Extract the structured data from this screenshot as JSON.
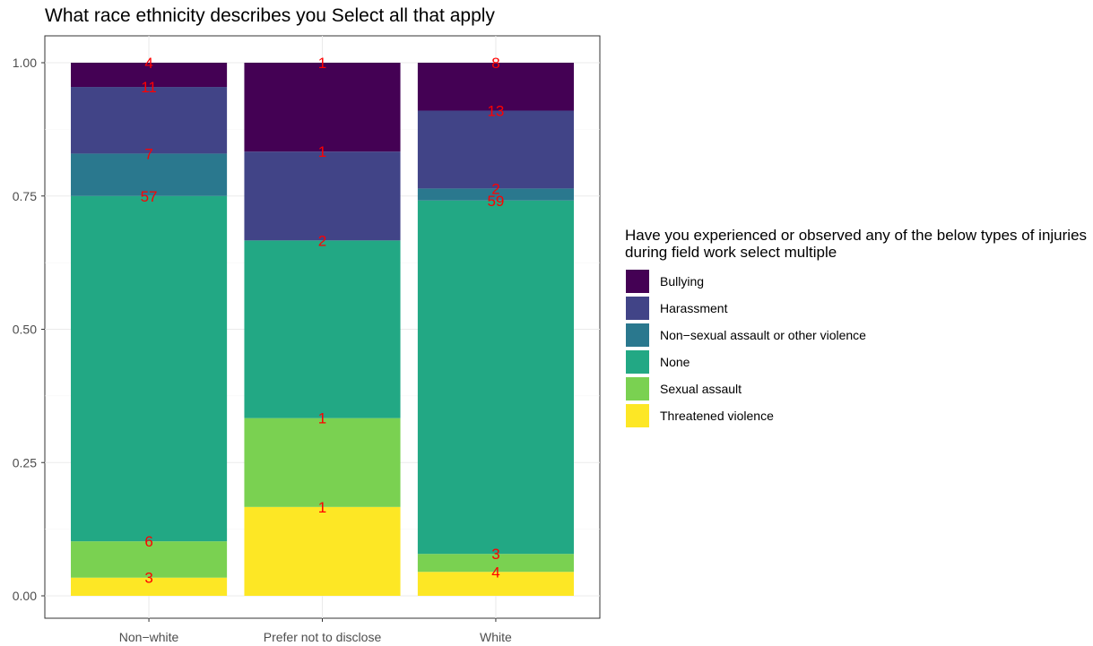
{
  "chart_data": {
    "type": "bar",
    "stacked": true,
    "normalized": true,
    "title": "What race ethnicity describes you Select all that apply",
    "xlabel": "",
    "ylabel": "",
    "ylim": [
      0,
      1
    ],
    "y_ticks": [
      "0.00",
      "0.25",
      "0.50",
      "0.75",
      "1.00"
    ],
    "grid": true,
    "legend_position": "right",
    "legend_title": "Have you experienced or observed any of the below types of injuries during field work select multiple",
    "categories": [
      "Non−white",
      "Prefer not to disclose",
      "White"
    ],
    "series": [
      {
        "name": "Bullying",
        "color": "#440154",
        "values": [
          4,
          1,
          8
        ]
      },
      {
        "name": "Harassment",
        "color": "#414487",
        "values": [
          11,
          1,
          13
        ]
      },
      {
        "name": "Non−sexual assault or other violence",
        "color": "#2A788E",
        "values": [
          7,
          0,
          2
        ]
      },
      {
        "name": "None",
        "color": "#22A884",
        "values": [
          57,
          2,
          59
        ]
      },
      {
        "name": "Sexual assault",
        "color": "#7AD151",
        "values": [
          6,
          1,
          3
        ]
      },
      {
        "name": "Threatened violence",
        "color": "#FDE725",
        "values": [
          3,
          1,
          4
        ]
      }
    ],
    "label_color": "#ff0000"
  }
}
